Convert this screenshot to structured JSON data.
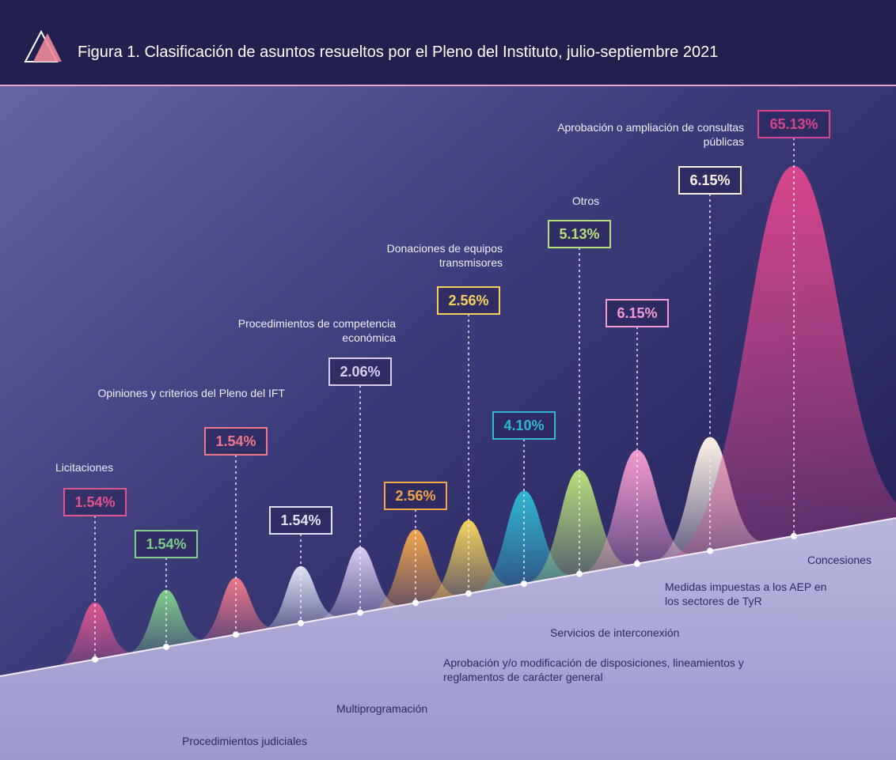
{
  "chart_data": {
    "type": "peak",
    "title": "Figura 1. Clasificación de asuntos resueltos por el Pleno del Instituto, julio-septiembre 2021",
    "categories": [
      "Licitaciones",
      "Procedimientos judiciales",
      "Opiniones y criterios del Pleno del IFT",
      "Multiprogramación",
      "Procedimientos de competencia económica",
      "Aprobación y/o modificación de disposiciones, lineamientos y reglamentos de carácter general",
      "Donaciones de equipos transmisores",
      "Servicios de interconexión",
      "Otros",
      "Medidas impuestas a los AEP en los sectores de TyR",
      "Aprobación o ampliación de consultas públicas",
      "Concesiones"
    ],
    "values": [
      1.54,
      1.54,
      1.54,
      1.54,
      2.06,
      2.56,
      2.56,
      4.1,
      5.13,
      6.15,
      6.15,
      65.13
    ],
    "value_labels": [
      "1.54%",
      "1.54%",
      "1.54%",
      "1.54%",
      "2.06%",
      "2.56%",
      "2.56%",
      "4.10%",
      "5.13%",
      "6.15%",
      "6.15%",
      "65.13%"
    ],
    "colors": [
      "#e0558f",
      "#7fcf8a",
      "#f0788a",
      "#dfe3f5",
      "#d9cdf0",
      "#f3a64a",
      "#f5d35a",
      "#2fb8d0",
      "#b8e07a",
      "#f59ad0",
      "#fff3e6",
      "#d8448c"
    ]
  }
}
